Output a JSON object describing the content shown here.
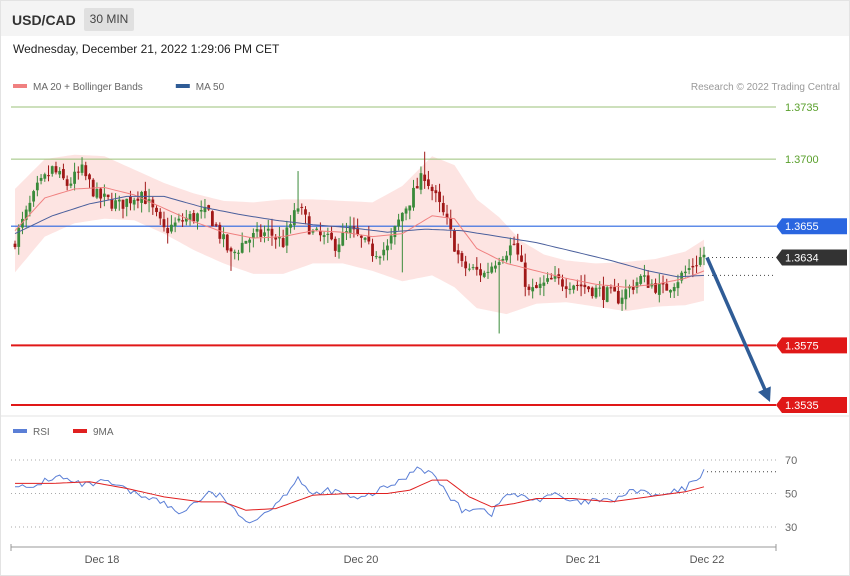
{
  "header": {
    "symbol": "USD/CAD",
    "timeframe": "30 MIN",
    "datetime": "Wednesday, December 21, 2022 1:29:06 PM CET"
  },
  "legend": {
    "items": [
      {
        "label": "MA 20 + Bollinger Bands",
        "color": "#f08080"
      },
      {
        "label": "MA 50",
        "color": "#2f5c96"
      }
    ],
    "credit": "Research © 2022 Trading Central"
  },
  "rsi_legend": {
    "items": [
      {
        "label": "RSI",
        "color": "#5b7fd6"
      },
      {
        "label": "9MA",
        "color": "#e02020"
      }
    ]
  },
  "colors": {
    "bull": "#3a8a3a",
    "bear": "#a01818",
    "bb_fill": "#fde4e2",
    "ma20": "#f08080",
    "ma50": "#4a5f9c",
    "rsi": "#5b7fd6",
    "rsi_ma": "#e02020",
    "resistance": "#9bc27a",
    "pivot": "#2a66e0",
    "support": "#e01818",
    "last": "#333333",
    "arrow": "#2f5c96"
  },
  "chart_data": [
    {
      "type": "candlestick",
      "title": "USD/CAD",
      "ylim": [
        1.3525,
        1.3745
      ],
      "x_ticks": [
        "Dec 18",
        "Dec 20",
        "Dec 21",
        "Dec 22"
      ],
      "levels": [
        {
          "value": 1.3735,
          "label": "1.3735",
          "kind": "resistance"
        },
        {
          "value": 1.37,
          "label": "1.3700",
          "kind": "resistance"
        },
        {
          "value": 1.3655,
          "label": "1.3655",
          "kind": "pivot"
        },
        {
          "value": 1.3575,
          "label": "1.3575",
          "kind": "support"
        },
        {
          "value": 1.3535,
          "label": "1.3535",
          "kind": "support"
        }
      ],
      "last_price": {
        "value": 1.3634,
        "label": "1.3634"
      },
      "projection": {
        "from": 1.3634,
        "to": 1.3535
      },
      "anchors": {
        "close": [
          [
            0,
            1.3646
          ],
          [
            6,
            1.368
          ],
          [
            10,
            1.3693
          ],
          [
            14,
            1.3683
          ],
          [
            18,
            1.3692
          ],
          [
            22,
            1.3675
          ],
          [
            28,
            1.3669
          ],
          [
            34,
            1.3678
          ],
          [
            40,
            1.3652
          ],
          [
            46,
            1.366
          ],
          [
            52,
            1.3664
          ],
          [
            58,
            1.3635
          ],
          [
            62,
            1.3646
          ],
          [
            68,
            1.3651
          ],
          [
            72,
            1.3644
          ],
          [
            76,
            1.3668
          ],
          [
            80,
            1.365
          ],
          [
            86,
            1.3643
          ],
          [
            90,
            1.3652
          ],
          [
            96,
            1.3638
          ],
          [
            100,
            1.364
          ],
          [
            104,
            1.3664
          ],
          [
            110,
            1.369
          ],
          [
            116,
            1.3657
          ],
          [
            120,
            1.3628
          ],
          [
            126,
            1.3623
          ],
          [
            130,
            1.3635
          ],
          [
            134,
            1.3643
          ],
          [
            138,
            1.361
          ],
          [
            144,
            1.3618
          ],
          [
            150,
            1.3617
          ],
          [
            156,
            1.3612
          ],
          [
            162,
            1.3607
          ],
          [
            168,
            1.362
          ],
          [
            174,
            1.3612
          ],
          [
            180,
            1.3624
          ],
          [
            185,
            1.3636
          ]
        ],
        "ma20": [
          [
            0,
            1.3652
          ],
          [
            8,
            1.3674
          ],
          [
            16,
            1.368
          ],
          [
            24,
            1.3681
          ],
          [
            32,
            1.3676
          ],
          [
            40,
            1.3667
          ],
          [
            48,
            1.3658
          ],
          [
            56,
            1.3651
          ],
          [
            64,
            1.3647
          ],
          [
            72,
            1.3648
          ],
          [
            80,
            1.3652
          ],
          [
            88,
            1.3651
          ],
          [
            96,
            1.3648
          ],
          [
            104,
            1.365
          ],
          [
            112,
            1.3662
          ],
          [
            118,
            1.366
          ],
          [
            124,
            1.364
          ],
          [
            132,
            1.363
          ],
          [
            140,
            1.3625
          ],
          [
            148,
            1.362
          ],
          [
            156,
            1.3616
          ],
          [
            164,
            1.3614
          ],
          [
            172,
            1.3616
          ],
          [
            180,
            1.362
          ],
          [
            185,
            1.3625
          ]
        ],
        "bb_upper": [
          [
            0,
            1.368
          ],
          [
            8,
            1.37
          ],
          [
            16,
            1.3703
          ],
          [
            24,
            1.3702
          ],
          [
            32,
            1.3693
          ],
          [
            40,
            1.3684
          ],
          [
            48,
            1.3677
          ],
          [
            56,
            1.3672
          ],
          [
            64,
            1.3671
          ],
          [
            72,
            1.3673
          ],
          [
            80,
            1.3673
          ],
          [
            88,
            1.3672
          ],
          [
            96,
            1.3671
          ],
          [
            104,
            1.3682
          ],
          [
            112,
            1.3702
          ],
          [
            118,
            1.3696
          ],
          [
            124,
            1.3673
          ],
          [
            130,
            1.3661
          ],
          [
            136,
            1.3645
          ],
          [
            142,
            1.3636
          ],
          [
            148,
            1.3632
          ],
          [
            156,
            1.363
          ],
          [
            164,
            1.3631
          ],
          [
            172,
            1.3633
          ],
          [
            180,
            1.3638
          ],
          [
            185,
            1.3646
          ]
        ],
        "bb_lower": [
          [
            0,
            1.3624
          ],
          [
            8,
            1.3648
          ],
          [
            16,
            1.3657
          ],
          [
            24,
            1.366
          ],
          [
            32,
            1.3659
          ],
          [
            40,
            1.365
          ],
          [
            48,
            1.3639
          ],
          [
            56,
            1.363
          ],
          [
            64,
            1.3623
          ],
          [
            72,
            1.3623
          ],
          [
            80,
            1.363
          ],
          [
            88,
            1.363
          ],
          [
            96,
            1.3625
          ],
          [
            104,
            1.3618
          ],
          [
            112,
            1.3622
          ],
          [
            118,
            1.3614
          ],
          [
            124,
            1.36
          ],
          [
            132,
            1.3596
          ],
          [
            140,
            1.3603
          ],
          [
            148,
            1.3604
          ],
          [
            156,
            1.3601
          ],
          [
            164,
            1.3598
          ],
          [
            172,
            1.3601
          ],
          [
            180,
            1.3602
          ],
          [
            185,
            1.3605
          ]
        ],
        "ma50": [
          [
            0,
            1.365
          ],
          [
            10,
            1.3662
          ],
          [
            20,
            1.367
          ],
          [
            30,
            1.3675
          ],
          [
            40,
            1.3675
          ],
          [
            50,
            1.3668
          ],
          [
            60,
            1.3663
          ],
          [
            70,
            1.3659
          ],
          [
            80,
            1.3656
          ],
          [
            90,
            1.3654
          ],
          [
            100,
            1.3651
          ],
          [
            110,
            1.3653
          ],
          [
            120,
            1.3652
          ],
          [
            130,
            1.3648
          ],
          [
            140,
            1.3644
          ],
          [
            150,
            1.3638
          ],
          [
            160,
            1.3632
          ],
          [
            170,
            1.3625
          ],
          [
            178,
            1.3621
          ],
          [
            185,
            1.3622
          ]
        ]
      }
    },
    {
      "type": "line",
      "title": "RSI",
      "ylim": [
        20,
        80
      ],
      "y_ticks": [
        70,
        50,
        30
      ],
      "series": [
        {
          "name": "RSI",
          "anchors": [
            [
              0,
              56
            ],
            [
              4,
              52
            ],
            [
              8,
              58
            ],
            [
              12,
              60
            ],
            [
              16,
              56
            ],
            [
              20,
              55
            ],
            [
              24,
              57
            ],
            [
              28,
              54
            ],
            [
              32,
              50
            ],
            [
              36,
              48
            ],
            [
              40,
              44
            ],
            [
              44,
              38
            ],
            [
              48,
              44
            ],
            [
              52,
              50
            ],
            [
              56,
              48
            ],
            [
              60,
              36
            ],
            [
              64,
              34
            ],
            [
              68,
              40
            ],
            [
              72,
              48
            ],
            [
              76,
              60
            ],
            [
              80,
              48
            ],
            [
              84,
              52
            ],
            [
              88,
              50
            ],
            [
              92,
              46
            ],
            [
              96,
              50
            ],
            [
              100,
              54
            ],
            [
              104,
              58
            ],
            [
              108,
              66
            ],
            [
              112,
              62
            ],
            [
              116,
              50
            ],
            [
              120,
              40
            ],
            [
              124,
              42
            ],
            [
              128,
              38
            ],
            [
              132,
              50
            ],
            [
              136,
              48
            ],
            [
              140,
              46
            ],
            [
              144,
              50
            ],
            [
              148,
              46
            ],
            [
              152,
              44
            ],
            [
              156,
              46
            ],
            [
              160,
              45
            ],
            [
              164,
              50
            ],
            [
              168,
              52
            ],
            [
              172,
              48
            ],
            [
              176,
              50
            ],
            [
              180,
              53
            ],
            [
              185,
              63
            ]
          ]
        },
        {
          "name": "9MA",
          "anchors": [
            [
              0,
              56
            ],
            [
              10,
              56
            ],
            [
              20,
              57
            ],
            [
              30,
              53
            ],
            [
              40,
              48
            ],
            [
              50,
              45
            ],
            [
              56,
              45
            ],
            [
              62,
              40
            ],
            [
              70,
              41
            ],
            [
              80,
              49
            ],
            [
              90,
              50
            ],
            [
              100,
              50
            ],
            [
              106,
              52
            ],
            [
              112,
              58
            ],
            [
              116,
              58
            ],
            [
              122,
              48
            ],
            [
              128,
              42
            ],
            [
              134,
              44
            ],
            [
              140,
              47
            ],
            [
              150,
              47
            ],
            [
              160,
              45
            ],
            [
              170,
              48
            ],
            [
              180,
              51
            ],
            [
              185,
              54
            ]
          ]
        }
      ],
      "last_value": 63
    }
  ]
}
